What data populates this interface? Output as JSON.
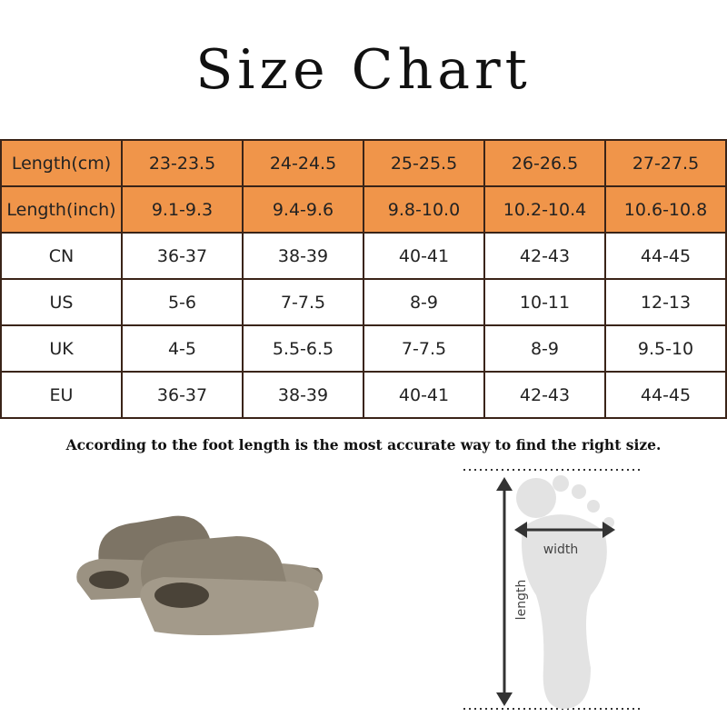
{
  "title": "Size Chart",
  "table": {
    "rows": [
      {
        "label": "Length(cm)",
        "values": [
          "23-23.5",
          "24-24.5",
          "25-25.5",
          "26-26.5",
          "27-27.5"
        ],
        "highlight": true
      },
      {
        "label": "Length(inch)",
        "values": [
          "9.1-9.3",
          "9.4-9.6",
          "9.8-10.0",
          "10.2-10.4",
          "10.6-10.8"
        ],
        "highlight": true
      },
      {
        "label": "CN",
        "values": [
          "36-37",
          "38-39",
          "40-41",
          "42-43",
          "44-45"
        ],
        "highlight": false
      },
      {
        "label": "US",
        "values": [
          "5-6",
          "7-7.5",
          "8-9",
          "10-11",
          "12-13"
        ],
        "highlight": false
      },
      {
        "label": "UK",
        "values": [
          "4-5",
          "5.5-6.5",
          "7-7.5",
          "8-9",
          "9.5-10"
        ],
        "highlight": false
      },
      {
        "label": "EU",
        "values": [
          "36-37",
          "38-39",
          "40-41",
          "42-43",
          "44-45"
        ],
        "highlight": false
      }
    ]
  },
  "note": "According to the foot length is the most  accurate way to find the right size.",
  "diagram": {
    "width_label": "width",
    "length_label": "length"
  },
  "colors": {
    "header_fill": "#f0954a",
    "border": "#3a2418",
    "slide": "#8a8070",
    "foot": "#e3e3e3"
  }
}
